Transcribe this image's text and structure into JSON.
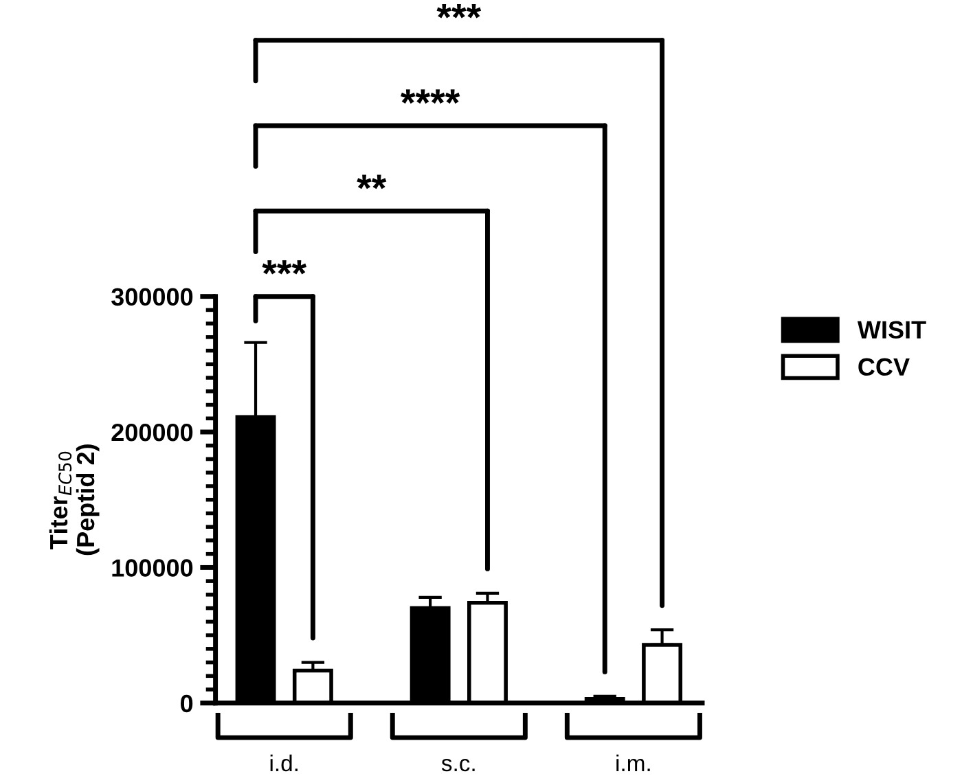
{
  "chart_data": {
    "type": "bar",
    "categories": [
      "i.d.",
      "s.c.",
      "i.m."
    ],
    "ylabel": "Titer$_{EC50}$\n(Peptid 2)",
    "series": [
      {
        "name": "WISIT",
        "color": "#000000",
        "values": [
          211000,
          70000,
          3000
        ],
        "errors": [
          [
            211000,
            266000
          ],
          [
            70000,
            78000
          ],
          [
            3000,
            5000
          ]
        ]
      },
      {
        "name": "CCV",
        "color": "#ffffff",
        "values": [
          24000,
          74000,
          43000
        ],
        "errors": [
          [
            24000,
            30000
          ],
          [
            74000,
            81000
          ],
          [
            43000,
            54000
          ]
        ]
      }
    ],
    "ylim": [
      0,
      300000
    ],
    "yticks": [
      0,
      100000,
      200000,
      300000
    ],
    "annotations": [
      "***",
      "**",
      "****",
      "***"
    ],
    "legend": "right",
    "grid": false
  }
}
